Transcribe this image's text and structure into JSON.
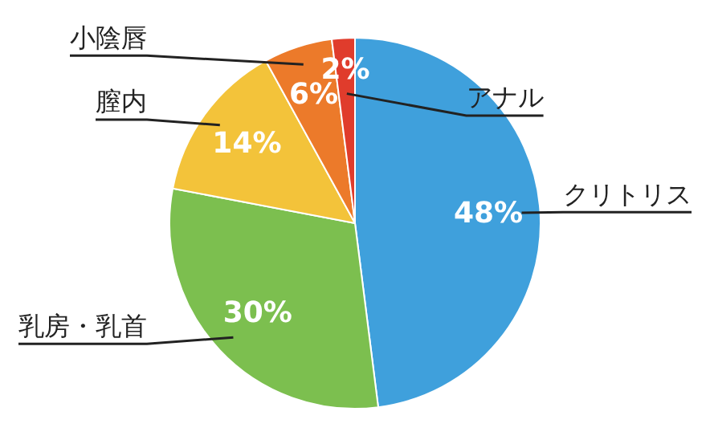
{
  "chart_data": {
    "type": "pie",
    "categories": [
      "クリトリス",
      "乳房・乳首",
      "膣内",
      "小陰唇",
      "アナル"
    ],
    "values": [
      48,
      30,
      14,
      6,
      2
    ],
    "colors": [
      "#3fa0dc",
      "#7cbf4f",
      "#f3c33a",
      "#ec7a2a",
      "#e03c2c"
    ],
    "value_labels": [
      "48%",
      "30%",
      "14%",
      "6%",
      "2%"
    ],
    "legend": false
  }
}
